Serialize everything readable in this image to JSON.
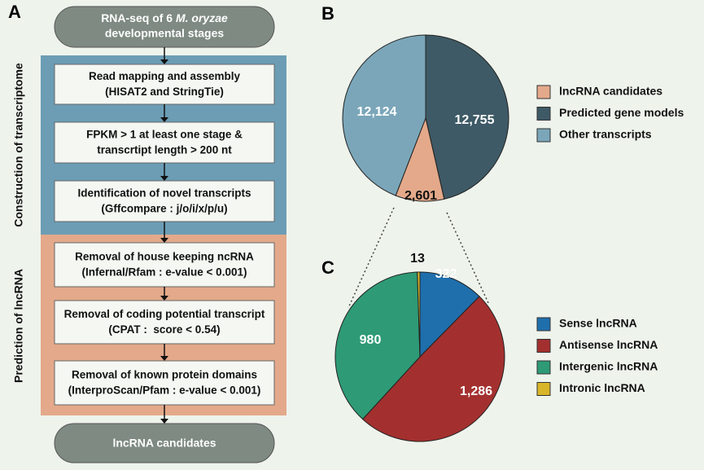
{
  "panel_labels": [
    "A",
    "B",
    "C"
  ],
  "flowchart": {
    "start": {
      "text": "RNA-seq of 6",
      "italic": "M. oryzae",
      "line2": "developmental stages"
    },
    "sections": [
      {
        "label": "Construction of transcriptome",
        "steps": [
          [
            "Read mapping and assembly",
            "(HISAT2 and StringTie)"
          ],
          [
            "FPKM > 1 at least one stage &",
            "transcrtipt length > 200 nt"
          ],
          [
            "Identification of novel transcripts",
            "(Gffcompare : j/o/i/x/p/u)"
          ]
        ]
      },
      {
        "label": "Prediction of lncRNA",
        "steps": [
          [
            "Removal of house keeping ncRNA",
            "(Infernal/Rfam : e-value < 0.001)"
          ],
          [
            "Removal of coding potential transcript",
            "(CPAT :  score < 0.54)"
          ],
          [
            "Removal of known protein domains",
            "(InterproScan/Pfam : e-value < 0.001)"
          ]
        ]
      }
    ],
    "end": "lncRNA candidates"
  },
  "chart_data": [
    {
      "type": "pie",
      "categories": [
        "lncRNA candidates",
        "Predicted gene models",
        "Other transcripts"
      ],
      "values": [
        2601,
        12755,
        12124
      ],
      "value_labels": [
        "2,601",
        "12,755",
        "12,124"
      ],
      "colors": [
        "#e4a98a",
        "#3e5a66",
        "#7ba6b9"
      ]
    },
    {
      "type": "pie",
      "categories": [
        "Sense lncRNA",
        "Antisense lncRNA",
        "Intergenic lncRNA",
        "Intronic lncRNA"
      ],
      "values": [
        322,
        1286,
        980,
        13
      ],
      "value_labels": [
        "322",
        "1,286",
        "980",
        "13"
      ],
      "colors": [
        "#1f6fad",
        "#a3302f",
        "#2e9a76",
        "#d9b52a"
      ]
    }
  ]
}
